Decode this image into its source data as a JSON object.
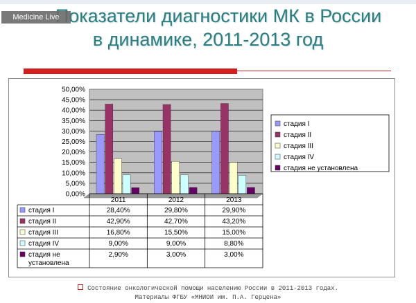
{
  "watermark": "Medicine Live",
  "header": {
    "title_line1": "Показатели диагностики МК в России",
    "title_line2": "в динамике, 2011-2013 год"
  },
  "footer": {
    "line1": "Состояние онкологической помощи населению России в 2011-2013 годах.",
    "line2": "Материалы ФГБУ «МНИОИ им. П.А. Герцена»"
  },
  "colors": {
    "title": "#2a7f82",
    "accent_red": "#d21f1f",
    "plot_bg": "#c0c0c0"
  },
  "chart_data": {
    "type": "bar",
    "categories": [
      "2011",
      "2012",
      "2013"
    ],
    "series": [
      {
        "name": "стадия I",
        "values": [
          28.4,
          29.8,
          29.9
        ],
        "labels": [
          "28,40%",
          "29,80%",
          "29,90%"
        ],
        "color": "#9999ff"
      },
      {
        "name": "стадия II",
        "values": [
          42.9,
          42.7,
          43.2
        ],
        "labels": [
          "42,90%",
          "42,70%",
          "43,20%"
        ],
        "color": "#993366"
      },
      {
        "name": "стадия III",
        "values": [
          16.8,
          15.5,
          15.0
        ],
        "labels": [
          "16,80%",
          "15,50%",
          "15,00%"
        ],
        "color": "#ffffcc"
      },
      {
        "name": "стадия IV",
        "values": [
          9.0,
          9.0,
          8.8
        ],
        "labels": [
          "9,00%",
          "9,00%",
          "8,80%"
        ],
        "color": "#ccffff"
      },
      {
        "name": "стадия не установлена",
        "values": [
          2.9,
          3.0,
          3.0
        ],
        "labels": [
          "2,90%",
          "3,00%",
          "3,00%"
        ],
        "color": "#660066"
      }
    ],
    "table_row_labels": [
      "стадия I",
      "стадия II",
      "стадия III",
      "стадия IV",
      "стадия не установлена"
    ],
    "y_ticks": [
      "0,00%",
      "5,00%",
      "10,00%",
      "15,00%",
      "20,00%",
      "25,00%",
      "30,00%",
      "35,00%",
      "40,00%",
      "45,00%",
      "50,00%"
    ],
    "ylim": [
      0,
      50
    ],
    "grid": true,
    "legend_position": "right",
    "data_table": true
  }
}
